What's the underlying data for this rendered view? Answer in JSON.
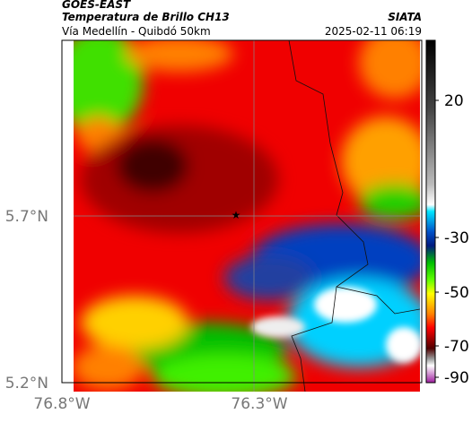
{
  "header": {
    "title": "GOES-EAST",
    "subtitle": "Temperatura de Brillo CH13",
    "location": "Vía Medellín - Quibdó 50km",
    "source": "SIATA",
    "datetime": "2025-02-11 06:19"
  },
  "axes": {
    "lat_labels": [
      "5.7°N",
      "5.2°N"
    ],
    "lon_labels": [
      "76.8°W",
      "76.3°W"
    ]
  },
  "colorbar": {
    "ticks": [
      20,
      -30,
      -50,
      -70,
      -90
    ]
  }
}
